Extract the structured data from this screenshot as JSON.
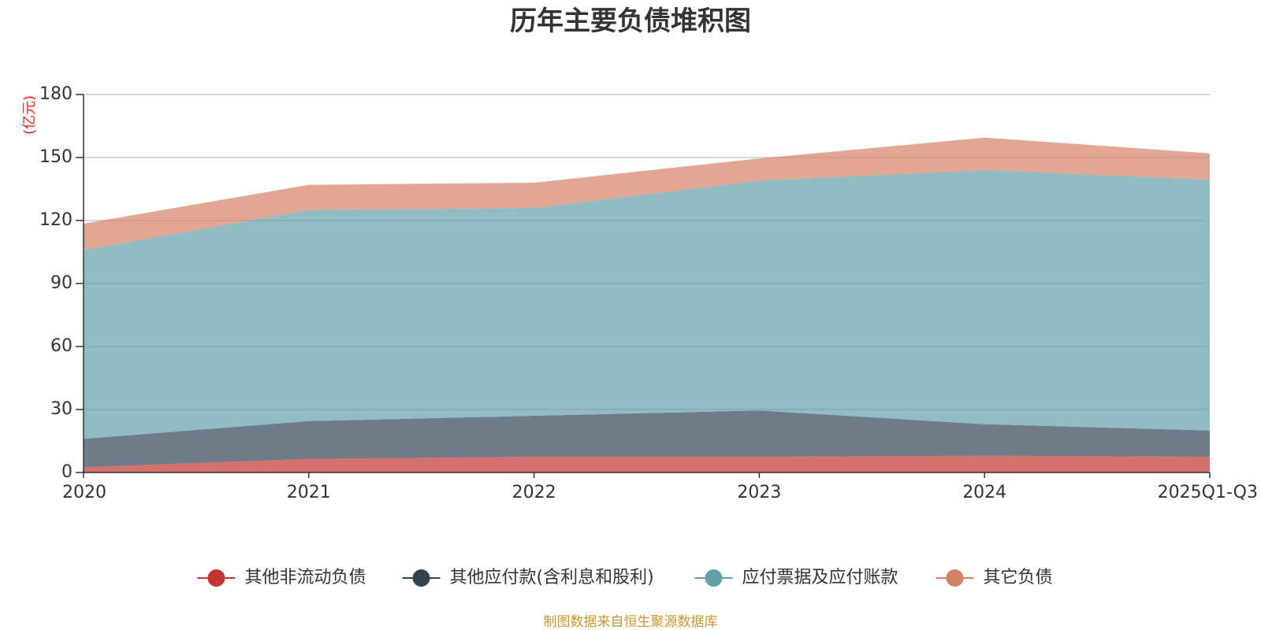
{
  "chart_data": {
    "type": "area",
    "stacked": true,
    "title": "历年主要负债堆积图",
    "ylabel": "(亿元)",
    "categories": [
      "2020",
      "2021",
      "2022",
      "2023",
      "2024",
      "2025Q1-Q3"
    ],
    "ylim": [
      0,
      180
    ],
    "yticks": [
      0,
      30,
      60,
      90,
      120,
      150,
      180
    ],
    "grid": true,
    "legend_position": "bottom",
    "series": [
      {
        "name": "其他非流动负债",
        "color": "#c23531",
        "values": [
          2.5,
          6.5,
          7.5,
          7.5,
          8,
          7.5
        ]
      },
      {
        "name": "其他应付款(含利息和股利)",
        "color": "#2f4554",
        "values": [
          13.5,
          18,
          19.5,
          22,
          15,
          12.5
        ]
      },
      {
        "name": "应付票据及应付账款",
        "color": "#61a0a8",
        "values": [
          90,
          100.5,
          99,
          109.5,
          121,
          119.5
        ]
      },
      {
        "name": "其它负债",
        "color": "#d48265",
        "values": [
          12.5,
          12,
          12,
          10.5,
          15.5,
          12.5
        ]
      }
    ],
    "source": "制图数据来自恒生聚源数据库"
  }
}
